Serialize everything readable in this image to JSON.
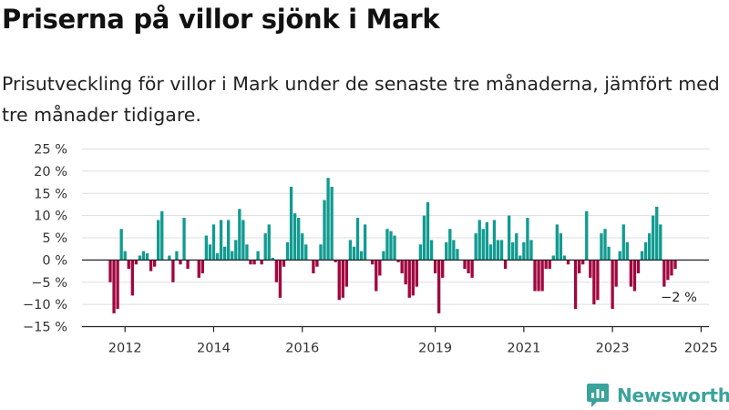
{
  "header": {
    "title": "Priserna på villor sjönk i Mark",
    "subtitle": "Prisutveckling för villor i Mark under de senaste tre månaderna, jämfört med tre månader tidigare."
  },
  "brand": {
    "name": "Newsworthy",
    "icon": "newsworthy-logo-icon"
  },
  "colors": {
    "positive": "#119b91",
    "negative": "#a1063e",
    "axis": "#222222",
    "grid": "#dddddd"
  },
  "chart_data": {
    "type": "bar",
    "y_unit": "%",
    "ylim": [
      -15,
      25
    ],
    "y_ticks": [
      25,
      20,
      15,
      10,
      5,
      0,
      -5,
      -10,
      -15
    ],
    "y_tick_labels": [
      "25 %",
      "20 %",
      "15 %",
      "10 %",
      "5 %",
      "0 %",
      "−5 %",
      "−10 %",
      "−15 %"
    ],
    "x_ticks": [
      "2012",
      "2014",
      "2016",
      "2019",
      "2021",
      "2023",
      "2025"
    ],
    "x_tick_years": [
      2012,
      2014,
      2016,
      2019,
      2021,
      2023,
      2025
    ],
    "x_start": "2011-09",
    "grid": true,
    "annotation": {
      "text": "−2 %",
      "target": "last"
    },
    "values": [
      -5,
      -12,
      -11,
      7,
      2,
      -2,
      -8,
      -1,
      1,
      2,
      1.5,
      -2.5,
      -1.5,
      9,
      11,
      0,
      1,
      -5,
      2,
      -1,
      9.5,
      -2,
      0,
      0,
      -4,
      -3,
      5.5,
      3.5,
      8,
      1.5,
      9,
      3,
      9,
      2,
      4.5,
      11.5,
      9,
      3.5,
      -1,
      -1,
      2,
      -1,
      6,
      8,
      0.5,
      -5,
      -8.5,
      -1.5,
      4,
      16.5,
      10.5,
      9.5,
      6,
      3.5,
      0,
      -3,
      -1.5,
      3.5,
      13.5,
      18.5,
      16.5,
      -0.5,
      -9,
      -8.5,
      -6,
      4.5,
      3,
      9.5,
      2,
      8,
      0,
      -1,
      -7,
      -3.5,
      2,
      7,
      6.5,
      5.5,
      -0.5,
      -3,
      -5.5,
      -8.5,
      -8,
      -6,
      3.5,
      10,
      13,
      4.5,
      -3,
      -12,
      -4,
      4,
      7,
      4.5,
      2.5,
      0,
      -2,
      -3,
      -4,
      6,
      9,
      7,
      8.5,
      3.5,
      9,
      4.5,
      4.5,
      -2,
      10,
      4,
      6,
      1,
      4,
      9.5,
      4.5,
      -7,
      -7,
      -7,
      -2,
      -2,
      1,
      8,
      6,
      1,
      -1,
      0,
      -11,
      -3,
      -1,
      11,
      -4,
      -10,
      -9,
      6,
      7,
      3,
      -11,
      -6,
      2,
      8,
      4,
      -6,
      -7,
      -3,
      2,
      4,
      6,
      10,
      12,
      8,
      -6,
      -4.5,
      -3.5,
      -2
    ]
  }
}
